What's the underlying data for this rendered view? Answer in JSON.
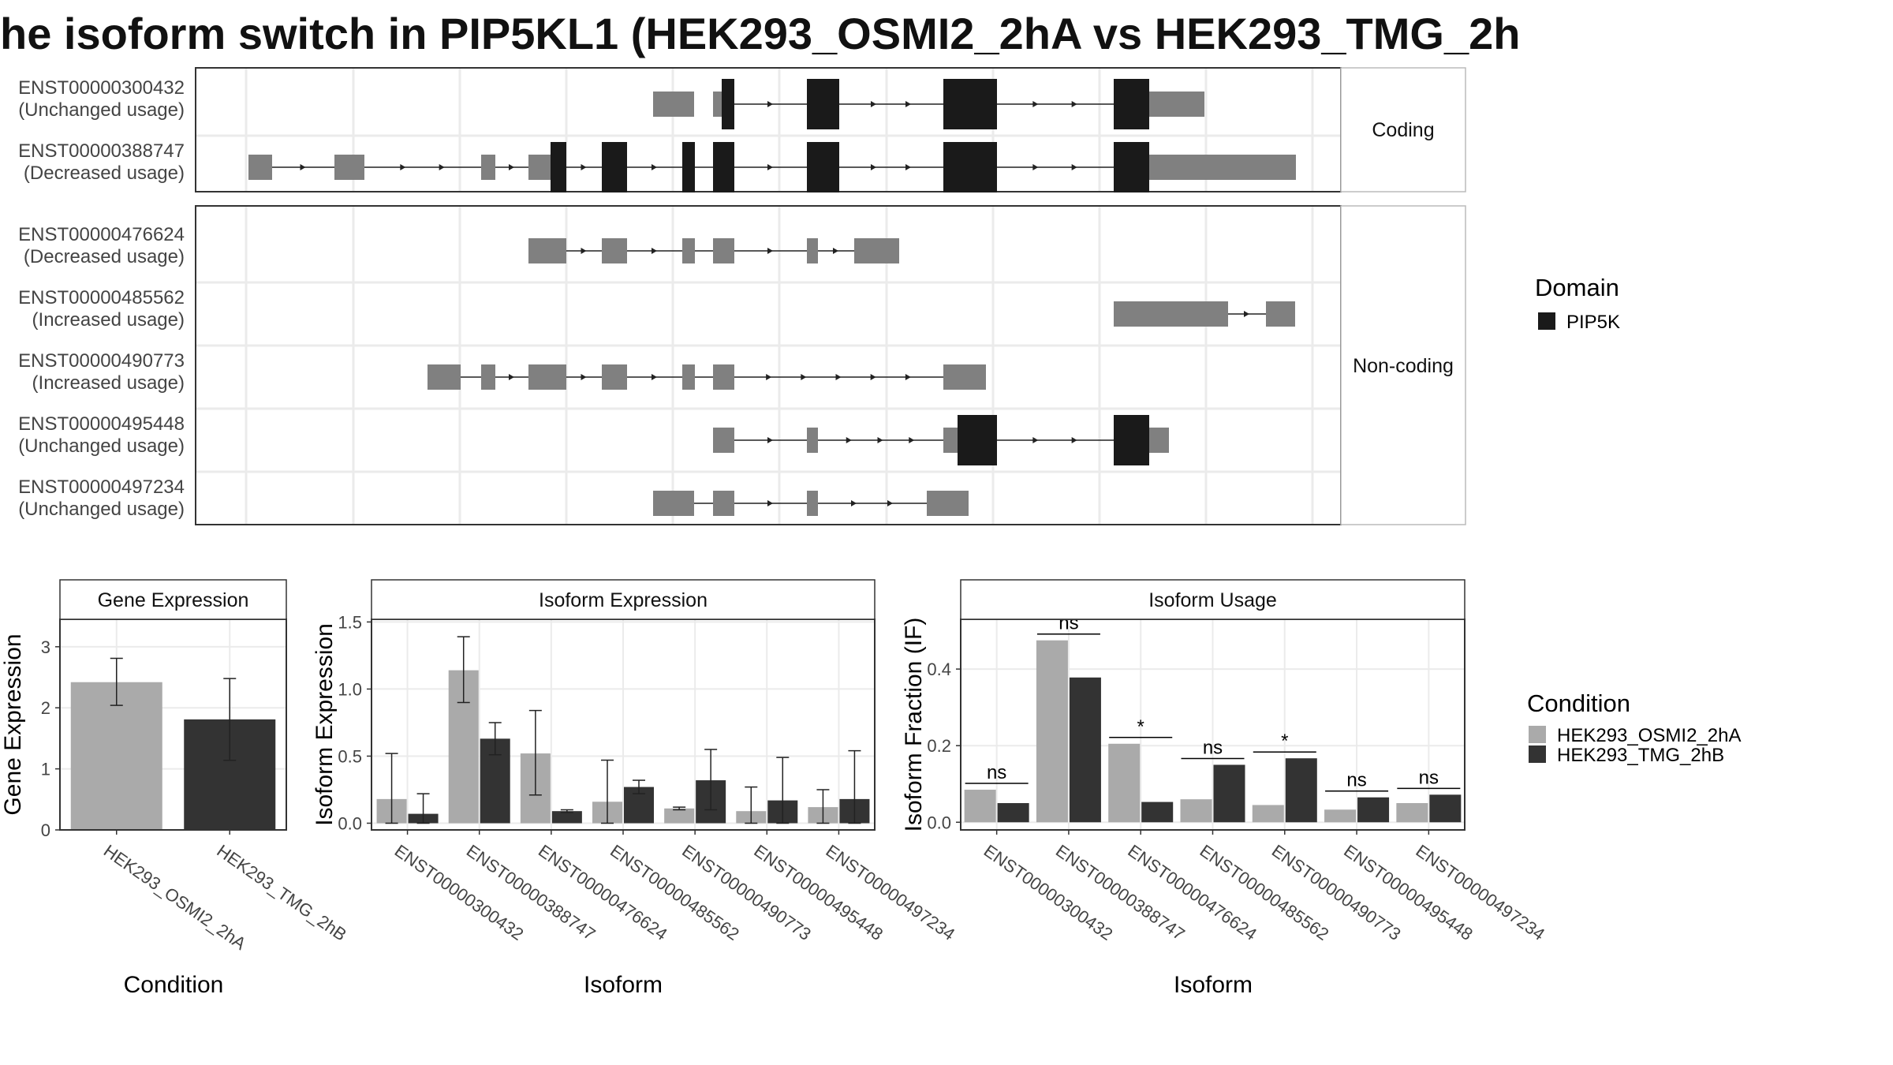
{
  "title": "he isoform switch in PIP5KL1 (HEK293_OSMI2_2hA vs HEK293_TMG_2h",
  "colors": {
    "domain": "#1a1a1a",
    "utr": "#808080",
    "cond1": "#aaaaaa",
    "cond2": "#333333",
    "grid": "#ebebeb",
    "strip_bg": "#ffffff"
  },
  "transcripts": {
    "facets": [
      {
        "label": "Coding",
        "isoforms": [
          {
            "id": "ENST00000300432",
            "usage": "(Unchanged usage)"
          },
          {
            "id": "ENST00000388747",
            "usage": "(Decreased usage)"
          }
        ]
      },
      {
        "label": "Non-coding",
        "isoforms": [
          {
            "id": "ENST00000476624",
            "usage": "(Decreased usage)"
          },
          {
            "id": "ENST00000485562",
            "usage": "(Increased usage)"
          },
          {
            "id": "ENST00000490773",
            "usage": "(Increased usage)"
          },
          {
            "id": "ENST00000495448",
            "usage": "(Unchanged usage)"
          },
          {
            "id": "ENST00000497234",
            "usage": "(Unchanged usage)"
          }
        ]
      }
    ]
  },
  "legend_domain": {
    "title": "Domain",
    "items": [
      "PIP5K"
    ]
  },
  "legend_condition": {
    "title": "Condition",
    "items": [
      "HEK293_OSMI2_2hA",
      "HEK293_TMG_2hB"
    ]
  },
  "chart_data": [
    {
      "type": "bar",
      "title": "Gene Expression",
      "xlabel": "Condition",
      "ylabel": "Gene Expression",
      "ylim": [
        0,
        3.45
      ],
      "yticks": [
        "0",
        "1",
        "2",
        "3"
      ],
      "categories": [
        "HEK293_OSMI2_2hA",
        "HEK293_TMG_2hB"
      ],
      "values": [
        2.42,
        1.81
      ],
      "error_low": [
        2.04,
        1.14
      ],
      "error_high": [
        2.81,
        2.48
      ]
    },
    {
      "type": "bar",
      "title": "Isoform Expression",
      "xlabel": "Isoform",
      "ylabel": "Isoform Expression",
      "ylim": [
        -0.05,
        1.52
      ],
      "yticks": [
        "0.0",
        "0.5",
        "1.0",
        "1.5"
      ],
      "categories": [
        "ENST00000300432",
        "ENST00000388747",
        "ENST00000476624",
        "ENST00000485562",
        "ENST00000490773",
        "ENST00000495448",
        "ENST00000497234"
      ],
      "series": [
        {
          "name": "HEK293_OSMI2_2hA",
          "values": [
            0.18,
            1.14,
            0.52,
            0.16,
            0.11,
            0.09,
            0.12
          ],
          "error_low": [
            0.0,
            0.9,
            0.21,
            0.0,
            0.1,
            0.0,
            0.0
          ],
          "error_high": [
            0.52,
            1.39,
            0.84,
            0.47,
            0.12,
            0.27,
            0.25
          ]
        },
        {
          "name": "HEK293_TMG_2hB",
          "values": [
            0.07,
            0.63,
            0.09,
            0.27,
            0.32,
            0.17,
            0.18
          ],
          "error_low": [
            0.0,
            0.51,
            0.08,
            0.22,
            0.1,
            0.0,
            0.0
          ],
          "error_high": [
            0.22,
            0.75,
            0.1,
            0.32,
            0.55,
            0.49,
            0.54
          ]
        }
      ]
    },
    {
      "type": "bar",
      "title": "Isoform Usage",
      "xlabel": "Isoform",
      "ylabel": "Isoform Fraction (IF)",
      "ylim": [
        -0.02,
        0.53
      ],
      "yticks": [
        "0.0",
        "0.2",
        "0.4"
      ],
      "categories": [
        "ENST00000300432",
        "ENST00000388747",
        "ENST00000476624",
        "ENST00000485562",
        "ENST00000490773",
        "ENST00000495448",
        "ENST00000497234"
      ],
      "series": [
        {
          "name": "HEK293_OSMI2_2hA",
          "values": [
            0.085,
            0.475,
            0.205,
            0.06,
            0.045,
            0.033,
            0.05
          ]
        },
        {
          "name": "HEK293_TMG_2hB",
          "values": [
            0.05,
            0.378,
            0.053,
            0.15,
            0.167,
            0.065,
            0.072
          ]
        }
      ],
      "significance": [
        "ns",
        "ns",
        "*",
        "ns",
        "*",
        "ns",
        "ns"
      ]
    }
  ]
}
